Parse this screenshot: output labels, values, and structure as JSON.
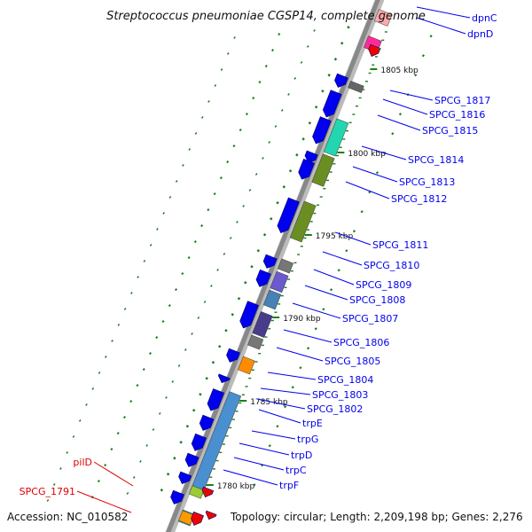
{
  "title": "Streptococcus pneumoniae CGSP14, complete genome",
  "accession": "Accession: NC_010582",
  "topology": "Topology: circular; Length: 2,209,198 bp; Genes: 2,276",
  "colors": {
    "forward_gene": "#0000ee",
    "backbone": "#888888",
    "leader_blue": "#0000ee",
    "leader_red": "#dd0000",
    "tick": "#1a7f1a"
  },
  "position_markers": [
    "1805 kbp",
    "1800 kbp",
    "1795 kbp",
    "1790 kbp",
    "1785 kbp",
    "1780 kbp"
  ],
  "gene_labels": [
    {
      "text": "dpnC",
      "color": "blue"
    },
    {
      "text": "dpnD",
      "color": "blue"
    },
    {
      "text": "SPCG_1817",
      "color": "blue"
    },
    {
      "text": "SPCG_1816",
      "color": "blue"
    },
    {
      "text": "SPCG_1815",
      "color": "blue"
    },
    {
      "text": "SPCG_1814",
      "color": "blue"
    },
    {
      "text": "SPCG_1813",
      "color": "blue"
    },
    {
      "text": "SPCG_1812",
      "color": "blue"
    },
    {
      "text": "SPCG_1811",
      "color": "blue"
    },
    {
      "text": "SPCG_1810",
      "color": "blue"
    },
    {
      "text": "SPCG_1809",
      "color": "blue"
    },
    {
      "text": "SPCG_1808",
      "color": "blue"
    },
    {
      "text": "SPCG_1807",
      "color": "blue"
    },
    {
      "text": "SPCG_1806",
      "color": "blue"
    },
    {
      "text": "SPCG_1805",
      "color": "blue"
    },
    {
      "text": "SPCG_1804",
      "color": "blue"
    },
    {
      "text": "SPCG_1803",
      "color": "blue"
    },
    {
      "text": "SPCG_1802",
      "color": "blue"
    },
    {
      "text": "trpE",
      "color": "blue"
    },
    {
      "text": "trpG",
      "color": "blue"
    },
    {
      "text": "trpD",
      "color": "blue"
    },
    {
      "text": "trpC",
      "color": "blue"
    },
    {
      "text": "trpF",
      "color": "blue"
    },
    {
      "text": "pilD",
      "color": "red"
    },
    {
      "text": "SPCG_1791",
      "color": "red"
    }
  ]
}
